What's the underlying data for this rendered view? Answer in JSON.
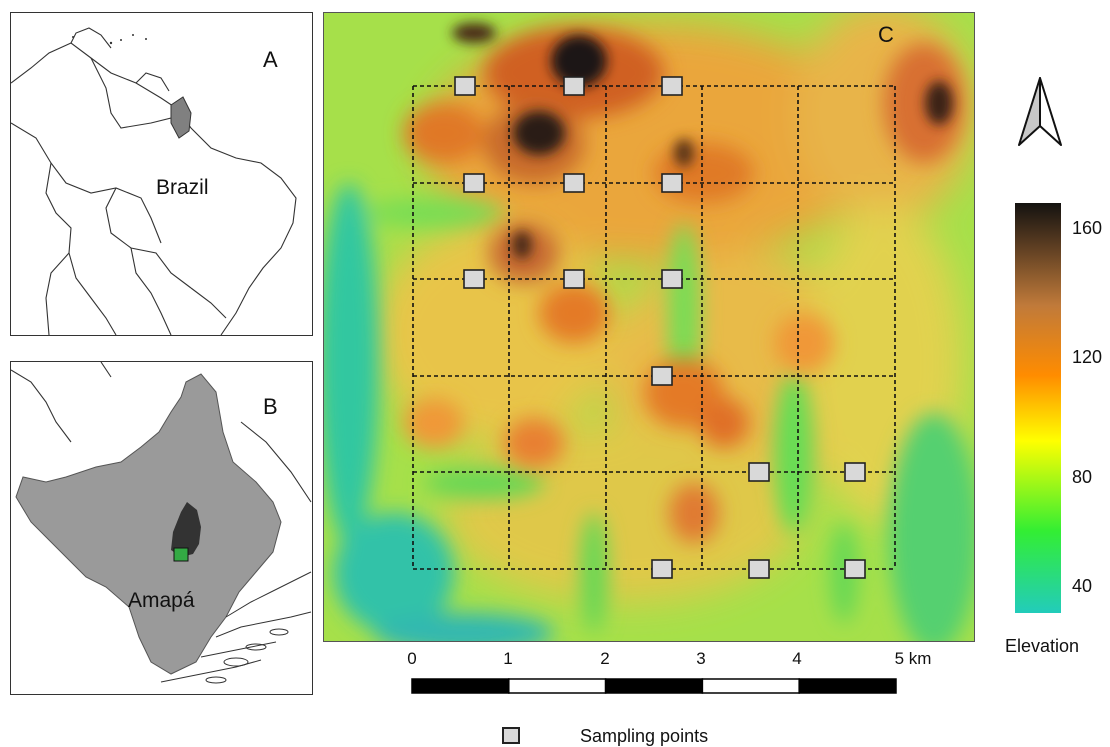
{
  "panel_a": {
    "letter": "A",
    "place_label": "Brazil"
  },
  "panel_b": {
    "letter": "B",
    "place_label": "Amapá"
  },
  "panel_c": {
    "letter": "C",
    "sampling_points": [
      {
        "col": 1,
        "row": 1
      },
      {
        "col": 2,
        "row": 1
      },
      {
        "col": 3,
        "row": 1
      },
      {
        "col": 1,
        "row": 2
      },
      {
        "col": 2,
        "row": 2
      },
      {
        "col": 3,
        "row": 2
      },
      {
        "col": 1,
        "row": 3
      },
      {
        "col": 2,
        "row": 3
      },
      {
        "col": 3,
        "row": 3
      },
      {
        "col": 3,
        "row": 4
      },
      {
        "col": 4,
        "row": 5
      },
      {
        "col": 5,
        "row": 5
      },
      {
        "col": 3,
        "row": 6
      },
      {
        "col": 4,
        "row": 6
      },
      {
        "col": 5,
        "row": 6
      }
    ]
  },
  "elevation_legend": {
    "title": "Elevation",
    "ticks": [
      "160",
      "120",
      "80",
      "40"
    ],
    "colors": [
      "#141210",
      "#c07a3a",
      "#ff8c00",
      "#ffff00",
      "#33ee33",
      "#22ccbb"
    ]
  },
  "scale_bar": {
    "labels": [
      "0",
      "1",
      "2",
      "3",
      "4",
      "5 km"
    ],
    "segment_colors": [
      "#000000",
      "#ffffff",
      "#000000",
      "#ffffff",
      "#000000"
    ]
  },
  "north_arrow": {
    "icon": "north-arrow-icon"
  },
  "legend": {
    "label": "Sampling points",
    "marker_color": "#d9d9d9"
  }
}
